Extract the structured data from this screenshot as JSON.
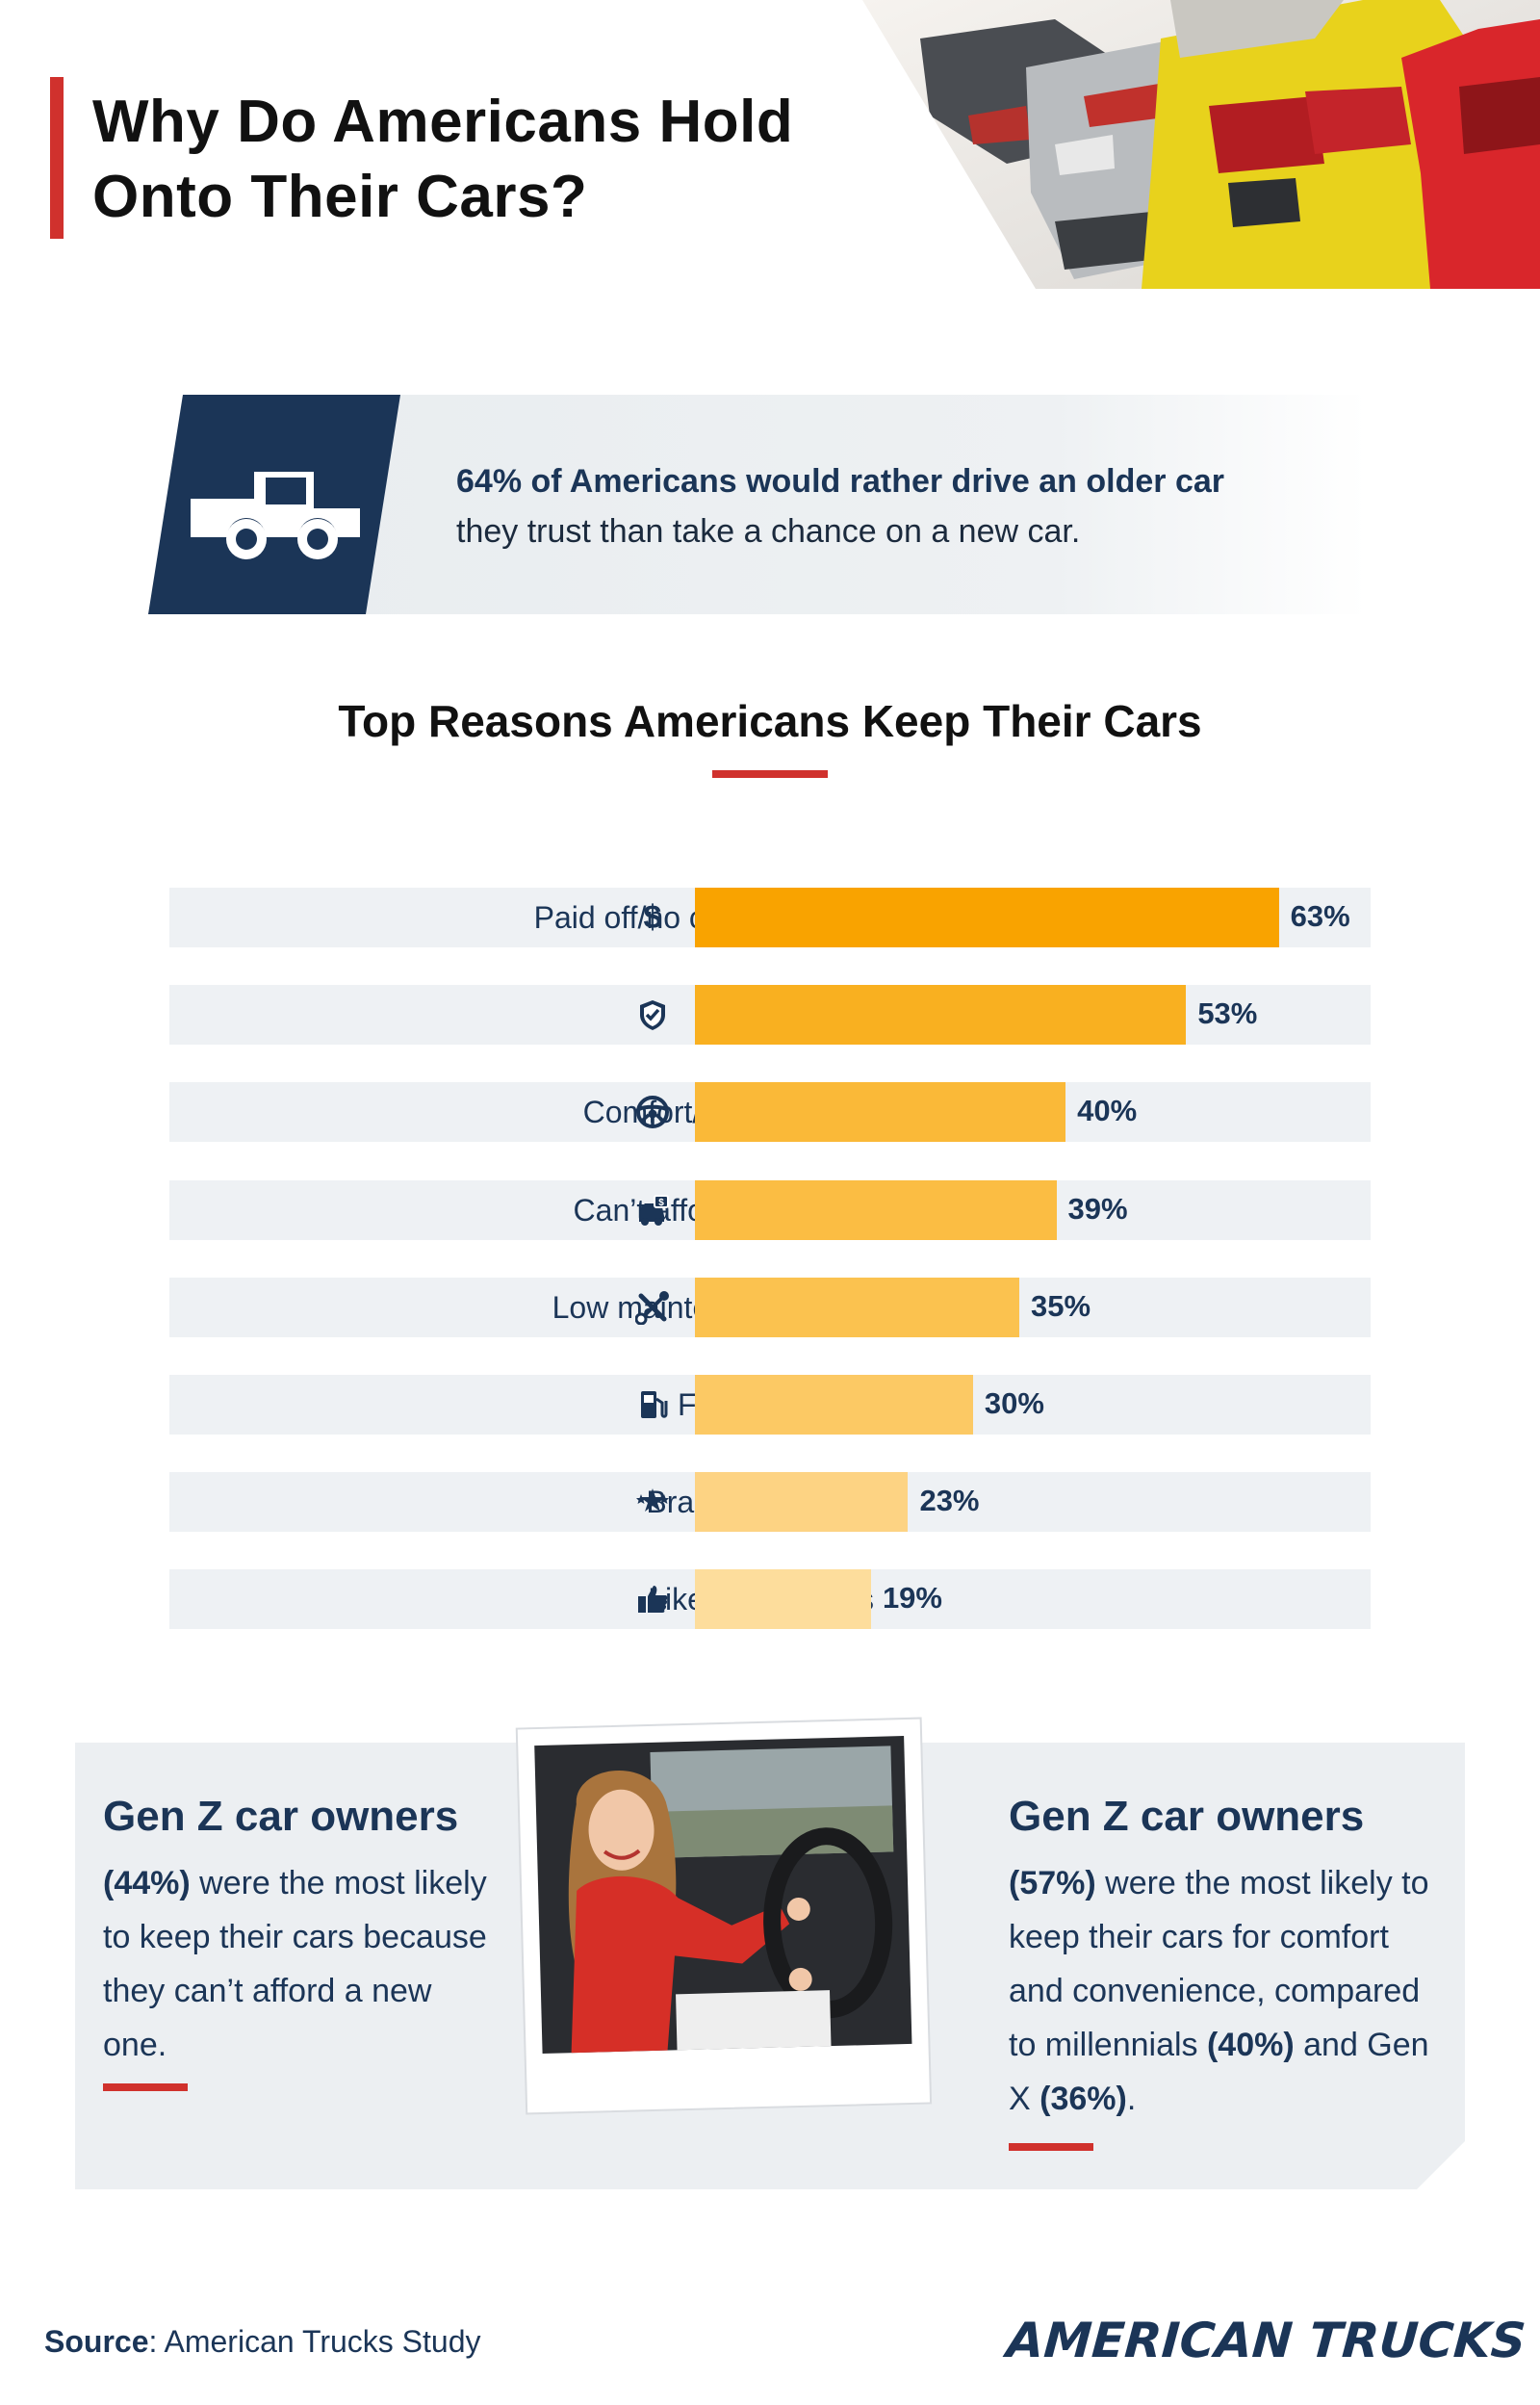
{
  "header": {
    "title": "Why Do Americans Hold Onto Their Cars?"
  },
  "stat": {
    "bold_lead": "64% of Americans would rather drive an older car",
    "rest": " they trust than take a chance on a new car.",
    "icon": "pickup-truck-icon"
  },
  "chart_data": {
    "type": "bar",
    "orientation": "horizontal",
    "title": "Top Reasons Americans Keep Their Cars",
    "categories": [
      "Paid off/no car payments",
      "Reliability",
      "Comfort/convenience",
      "Can’t afford a new car",
      "Low maintenance costs",
      "Fuel efficiency",
      "Brand reputation",
      "Like how it looks"
    ],
    "values": [
      63,
      53,
      40,
      39,
      35,
      30,
      23,
      19
    ],
    "value_labels": [
      "63%",
      "53%",
      "40%",
      "39%",
      "35%",
      "30%",
      "23%",
      "19%"
    ],
    "icons": [
      "dollar-icon",
      "shield-check-icon",
      "steering-wheel-icon",
      "car-price-tag-icon",
      "wrench-screwdriver-icon",
      "fuel-pump-icon",
      "stars-icon",
      "thumbs-up-icon"
    ],
    "colors": [
      "#f9a300",
      "#f9b020",
      "#fab938",
      "#fbbd43",
      "#fbc24f",
      "#fcc964",
      "#fdd383",
      "#fddd9c"
    ],
    "xlim": [
      0,
      70
    ],
    "grid": false,
    "legend": "none"
  },
  "genz": {
    "left_title": "Gen Z car owners",
    "left_pct": "(44%)",
    "left_text": " were the most likely to keep their cars because they can’t afford a new one.",
    "right_title": "Gen Z car owners",
    "right_pct": "(57%)",
    "right_text_a": " were the most likely to keep their cars for comfort and convenience, compared to millennials ",
    "right_pct_b": "(40%)",
    "right_text_b": " and Gen X ",
    "right_pct_c": "(36%)",
    "right_text_c": "."
  },
  "footer": {
    "source_label": "Source",
    "source_text": ": American Trucks Study",
    "brand": "AMERICAN TRUCKS"
  },
  "colors": {
    "accent_red": "#d0312d",
    "navy": "#1b3557",
    "panel_gray": "#eceff2"
  }
}
